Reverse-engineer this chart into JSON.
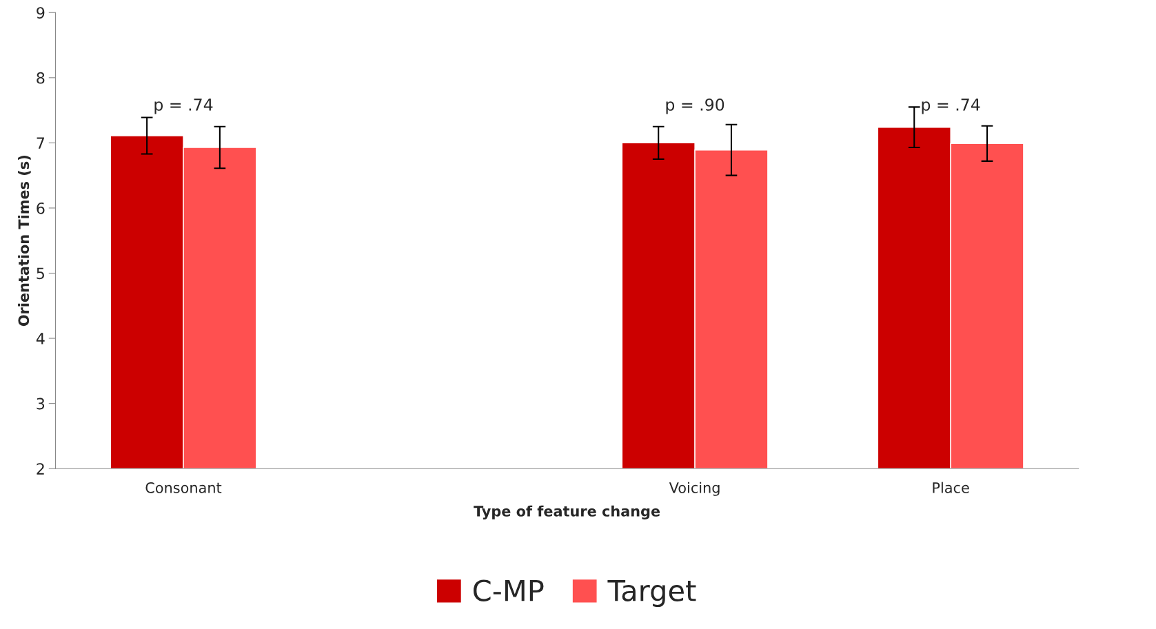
{
  "chart_data": {
    "type": "bar",
    "xlabel": "Type of feature change",
    "ylabel": "Orientation Times (s)",
    "categories": [
      "Consonant",
      null,
      "Voicing",
      "Place"
    ],
    "series": [
      {
        "name": "C-MP",
        "color": "#cc0000",
        "values": [
          7.11,
          null,
          7.0,
          7.24
        ],
        "errors": [
          0.28,
          null,
          0.25,
          0.31
        ]
      },
      {
        "name": "Target",
        "color": "#ff5050",
        "values": [
          6.93,
          null,
          6.89,
          6.99
        ],
        "errors": [
          0.32,
          null,
          0.39,
          0.27
        ]
      }
    ],
    "ylim": [
      2,
      9
    ],
    "yticks": [
      2,
      3,
      4,
      5,
      6,
      7,
      8,
      9
    ],
    "grid": false,
    "legend": "bottom",
    "annotations": [
      "p = .74",
      "p = .90",
      "p = .74"
    ]
  }
}
